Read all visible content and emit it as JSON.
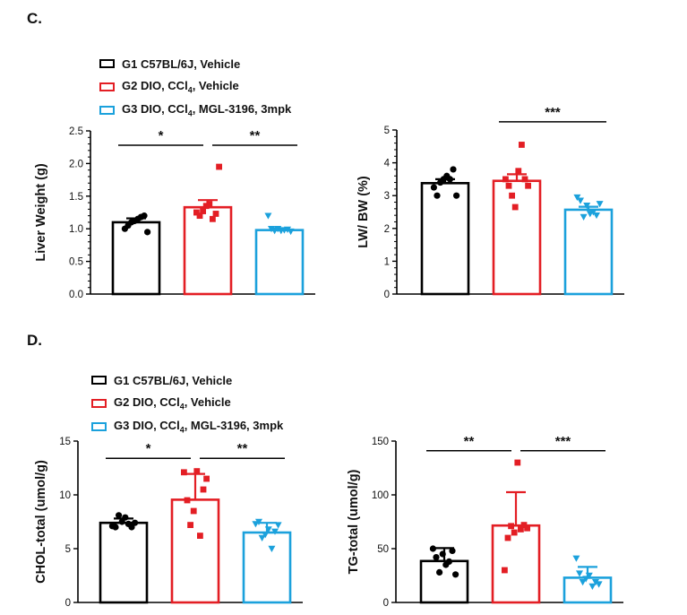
{
  "panels": [
    {
      "label": "C."
    },
    {
      "label": "D."
    }
  ],
  "legend": [
    {
      "name": "G1 C57BL/6J, Vehicle",
      "color": "#000000"
    },
    {
      "name": "G2 DIO, CCl4, Vehicle",
      "color": "#e31e24"
    },
    {
      "name": "G3 DIO, CCl4, MGL-3196, 3mpk",
      "color": "#1ba1dc"
    }
  ],
  "chart_data": [
    {
      "type": "bar",
      "id": "liver-weight",
      "title": "",
      "ylabel": "Liver Weight (g)",
      "ylim": [
        0,
        2.5
      ],
      "yticks": [
        "0.0",
        "0.5",
        "1.0",
        "1.5",
        "2.0",
        "2.5"
      ],
      "minor_ticks": true,
      "groups": [
        "G1 C57BL/6J, Vehicle",
        "G2 DIO, CCl4, Vehicle",
        "G3 DIO, CCl4, MGL-3196, 3mpk"
      ],
      "values": [
        1.1,
        1.33,
        0.98
      ],
      "errors": [
        0.06,
        0.11,
        0.03
      ],
      "points": [
        [
          1.0,
          1.05,
          1.1,
          1.12,
          1.15,
          1.18,
          1.2,
          0.95
        ],
        [
          1.25,
          1.2,
          1.27,
          1.35,
          1.38,
          1.15,
          1.23,
          1.95
        ],
        [
          1.2,
          1.0,
          0.97,
          1.0,
          0.97,
          0.98,
          0.99,
          0.96
        ]
      ],
      "significance": [
        {
          "from": 0,
          "to": 1,
          "label": "*",
          "y": 2.28
        },
        {
          "from": 1,
          "to": 2,
          "label": "**",
          "y": 2.28
        }
      ]
    },
    {
      "type": "bar",
      "id": "lw-bw",
      "title": "",
      "ylabel": "LW/ BW (%)",
      "ylim": [
        0,
        5
      ],
      "yticks": [
        "0",
        "1",
        "2",
        "3",
        "4",
        "5"
      ],
      "minor_ticks": true,
      "groups": [
        "G1 C57BL/6J, Vehicle",
        "G2 DIO, CCl4, Vehicle",
        "G3 DIO, CCl4, MGL-3196, 3mpk"
      ],
      "values": [
        3.38,
        3.45,
        2.57
      ],
      "errors": [
        0.12,
        0.2,
        0.09
      ],
      "points": [
        [
          3.25,
          3.0,
          3.4,
          3.5,
          3.6,
          3.5,
          3.8,
          3.0
        ],
        [
          3.5,
          3.3,
          3.0,
          2.65,
          3.75,
          4.55,
          3.5,
          3.3
        ],
        [
          2.95,
          2.85,
          2.35,
          2.7,
          2.45,
          2.5,
          2.4,
          2.75
        ]
      ],
      "significance": [
        {
          "from": 1,
          "to": 2,
          "label": "***",
          "y": 5.25
        }
      ]
    },
    {
      "type": "bar",
      "id": "chol-total",
      "title": "",
      "ylabel": "CHOL-total (umol/g)",
      "ylim": [
        0,
        15
      ],
      "yticks": [
        "0",
        "5",
        "10",
        "15"
      ],
      "minor_ticks": false,
      "groups": [
        "G1 C57BL/6J, Vehicle",
        "G2 DIO, CCl4, Vehicle",
        "G3 DIO, CCl4, MGL-3196, 3mpk"
      ],
      "values": [
        7.4,
        9.55,
        6.5
      ],
      "errors": [
        0.4,
        2.4,
        0.9
      ],
      "points": [
        [
          7.1,
          7.0,
          8.1,
          7.5,
          7.9,
          7.3,
          7.0,
          7.4
        ],
        [
          12.1,
          9.5,
          7.2,
          8.5,
          12.2,
          6.2,
          10.5,
          11.5
        ],
        [
          7.3,
          7.5,
          6.0,
          6.3,
          6.8,
          5.0,
          6.6,
          7.2
        ]
      ],
      "significance": [
        {
          "from": 0,
          "to": 1,
          "label": "*",
          "y": 13.4
        },
        {
          "from": 1,
          "to": 2,
          "label": "**",
          "y": 13.4
        }
      ]
    },
    {
      "type": "bar",
      "id": "tg-total",
      "title": "",
      "ylabel": "TG-total (umol/g)",
      "ylim": [
        0,
        150
      ],
      "yticks": [
        "0",
        "50",
        "100",
        "150"
      ],
      "minor_ticks": false,
      "groups": [
        "G1 C57BL/6J, Vehicle",
        "G2 DIO, CCl4, Vehicle",
        "G3 DIO, CCl4, MGL-3196, 3mpk"
      ],
      "values": [
        38.5,
        71.5,
        23.0
      ],
      "errors": [
        12,
        31,
        10
      ],
      "points": [
        [
          50,
          42,
          28,
          45,
          35,
          38,
          48,
          26
        ],
        [
          30,
          60,
          71,
          65,
          130,
          68,
          72,
          69
        ],
        [
          41,
          27,
          19,
          22,
          25,
          15,
          19,
          17
        ]
      ],
      "significance": [
        {
          "from": 0,
          "to": 1,
          "label": "**",
          "y": 141
        },
        {
          "from": 1,
          "to": 2,
          "label": "***",
          "y": 141
        }
      ]
    }
  ]
}
